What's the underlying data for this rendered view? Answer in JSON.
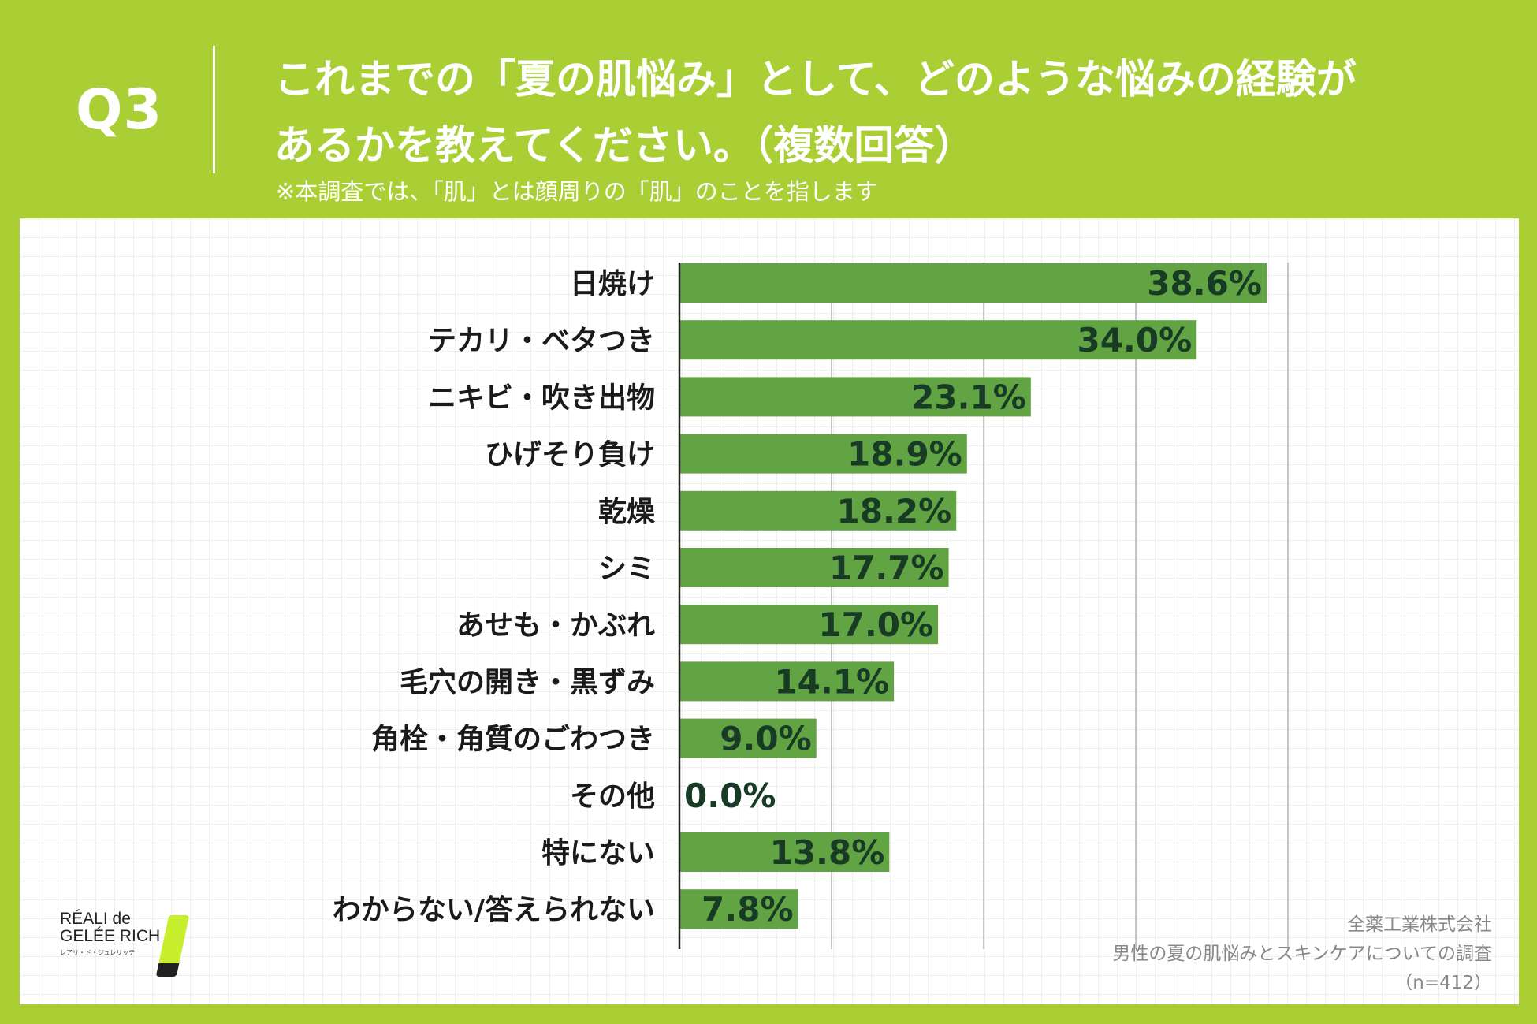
{
  "header": {
    "q_label": "Q3",
    "title_line1": "これまでの「夏の肌悩み」として、どのような悩みの経験が",
    "title_line2": "あるかを教えてください。（複数回答）",
    "note": "※本調査では、「肌」とは顔周りの「肌」のことを指します"
  },
  "colors": {
    "background": "#a9cf35",
    "bar": "#62a443",
    "value_text": "#173b25",
    "panel": "#ffffff"
  },
  "chart_data": {
    "type": "bar",
    "orientation": "horizontal",
    "title": "これまでの「夏の肌悩み」として、どのような悩みの経験があるかを教えてください。（複数回答）",
    "xlim": [
      0,
      40
    ],
    "grid": true,
    "categories": [
      "日焼け",
      "テカリ・ベタつき",
      "ニキビ・吹き出物",
      "ひげそり負け",
      "乾燥",
      "シミ",
      "あせも・かぶれ",
      "毛穴の開き・黒ずみ",
      "角栓・角質のごわつき",
      "その他",
      "特にない",
      "わからない/答えられない"
    ],
    "values": [
      38.6,
      34.0,
      23.1,
      18.9,
      18.2,
      17.7,
      17.0,
      14.1,
      9.0,
      0.0,
      13.8,
      7.8
    ],
    "value_labels": [
      "38.6%",
      "34.0%",
      "23.1%",
      "18.9%",
      "18.2%",
      "17.7%",
      "17.0%",
      "14.1%",
      "9.0%",
      "0.0%",
      "13.8%",
      "7.8%"
    ],
    "unit": "%"
  },
  "logo": {
    "line1": "RÉALI de",
    "line2": "GELÉE RICH",
    "sub": "レアリ・ド・ジュレリッチ"
  },
  "source": {
    "company": "全薬工業株式会社",
    "survey": "男性の夏の肌悩みとスキンケアについての調査",
    "sample": "（n=412）"
  }
}
